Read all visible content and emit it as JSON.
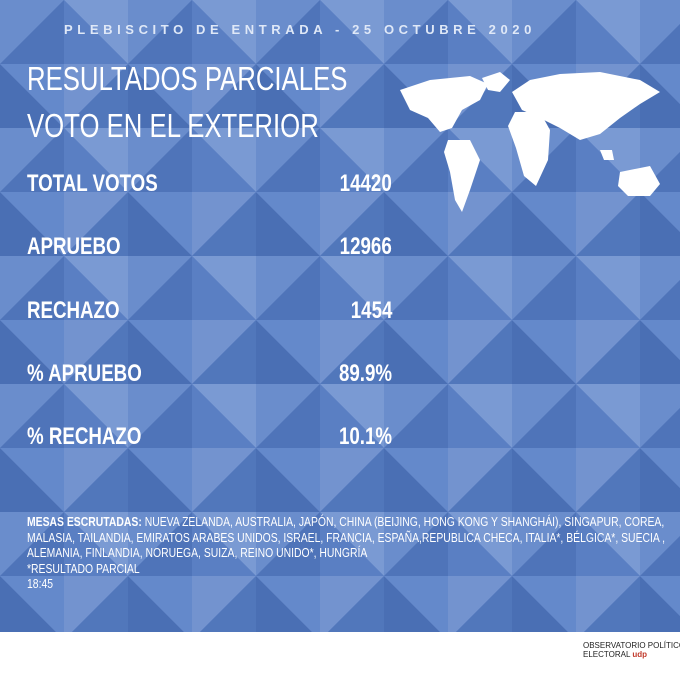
{
  "header": {
    "kicker": "PLEBISCITO DE ENTRADA - 25 OCTUBRE 2020",
    "title": [
      "RESULTADOS PARCIALES",
      "VOTO EN EL EXTERIOR"
    ]
  },
  "stats": [
    {
      "label": "TOTAL VOTOS",
      "value": "14420"
    },
    {
      "label": "APRUEBO",
      "value": "12966"
    },
    {
      "label": "RECHAZO",
      "value": "1454"
    },
    {
      "label": "% APRUEBO",
      "value": "89.9%"
    },
    {
      "label": "% RECHAZO",
      "value": "10.1%"
    }
  ],
  "footer": {
    "label": "MESAS ESCRUTADAS:",
    "text": "NUEVA ZELANDA, AUSTRALIA, JAPÓN, CHINA (BEIJING, HONG KONG Y SHANGHÁI), SINGAPUR, COREA, MALASIA, TAILANDIA,  EMIRATOS ARABES UNIDOS,  ISRAEL, FRANCIA, ESPAÑA,REPUBLICA CHECA, ITALIA*, BÉLGICA*, SUECIA , ALEMANIA, FINLANDIA, NORUEGA, SUIZA, REINO UNIDO*, HUNGRÍA",
    "note": "*RESULTADO PARCIAL",
    "time": "18:45"
  },
  "logo": {
    "line1": "OBSERVATORIO POLÍTICO",
    "line2": "ELECTORAL",
    "brand": "udp"
  }
}
